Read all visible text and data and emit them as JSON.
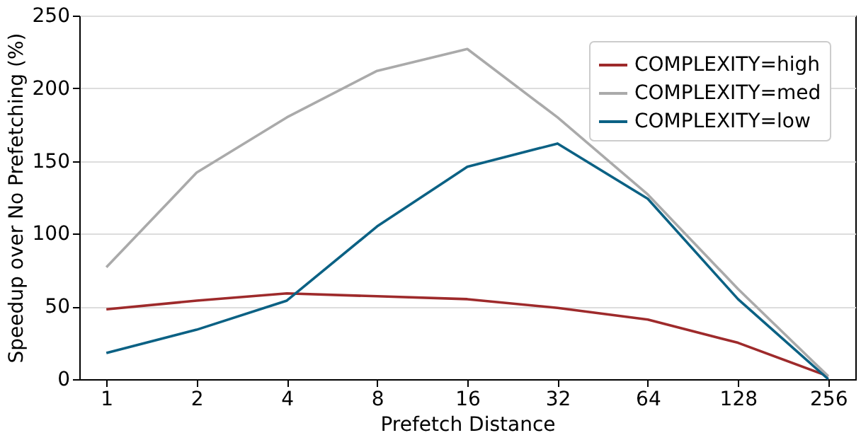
{
  "chart_data": {
    "type": "line",
    "xlabel": "Prefetch Distance",
    "ylabel": "Speedup over No Prefetching (%)",
    "categories": [
      "1",
      "2",
      "4",
      "8",
      "16",
      "32",
      "64",
      "128",
      "256"
    ],
    "series": [
      {
        "name": "COMPLEXITY=high",
        "color": "#9e2a2b",
        "values": [
          48,
          54,
          59,
          57,
          55,
          49,
          41,
          25,
          2
        ]
      },
      {
        "name": "COMPLEXITY=med",
        "color": "#aaaaaa",
        "values": [
          77,
          142,
          180,
          212,
          227,
          180,
          127,
          62,
          2
        ]
      },
      {
        "name": "COMPLEXITY=low",
        "color": "#0b6184",
        "values": [
          18,
          34,
          54,
          105,
          146,
          162,
          124,
          55,
          0
        ]
      }
    ],
    "ylim": [
      0,
      250
    ],
    "yticks": [
      0,
      50,
      100,
      150,
      200,
      250
    ],
    "grid": "y",
    "legend": "top right",
    "line_style": "solid",
    "marker": "none"
  }
}
